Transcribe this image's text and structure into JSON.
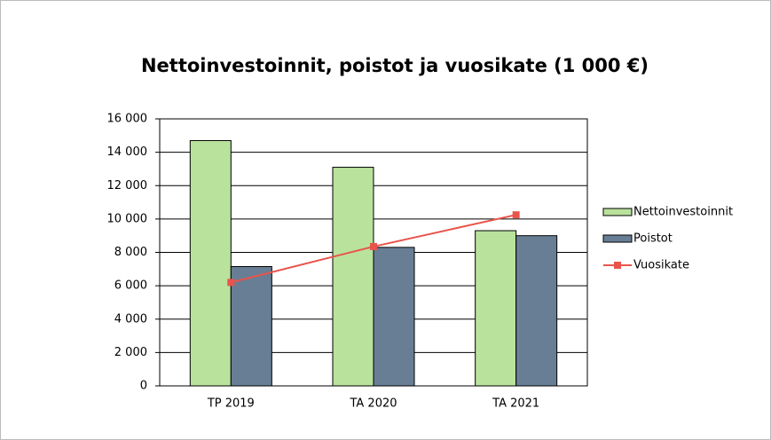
{
  "chart_data": {
    "type": "bar",
    "title": "Nettoinvestoinnit, poistot ja vuosikate (1 000 €)",
    "categories": [
      "TP 2019",
      "TA 2020",
      "TA 2021"
    ],
    "series": [
      {
        "name": "Nettoinvestoinnit",
        "color": "#b9e29c",
        "values": [
          14700,
          13100,
          9300
        ]
      },
      {
        "name": "Poistot",
        "color": "#687e95",
        "values": [
          7150,
          8300,
          9000
        ]
      },
      {
        "name": "Vuosikate",
        "color": "#e8544c",
        "type": "line",
        "values": [
          6200,
          8350,
          10250
        ]
      }
    ],
    "ylim": [
      0,
      16000
    ],
    "yticks": [
      0,
      {
        "value": 2000,
        "label": "2 000"
      },
      {
        "value": 4000,
        "label": "4 000"
      },
      {
        "value": 6000,
        "label": "6 000"
      },
      {
        "value": 8000,
        "label": "8 000"
      },
      {
        "value": 10000,
        "label": "10 000"
      },
      {
        "value": 12000,
        "label": "12 000"
      },
      {
        "value": 14000,
        "label": "14 000"
      },
      {
        "value": 16000,
        "label": "16 000"
      }
    ],
    "grid": true,
    "legend": "right"
  }
}
